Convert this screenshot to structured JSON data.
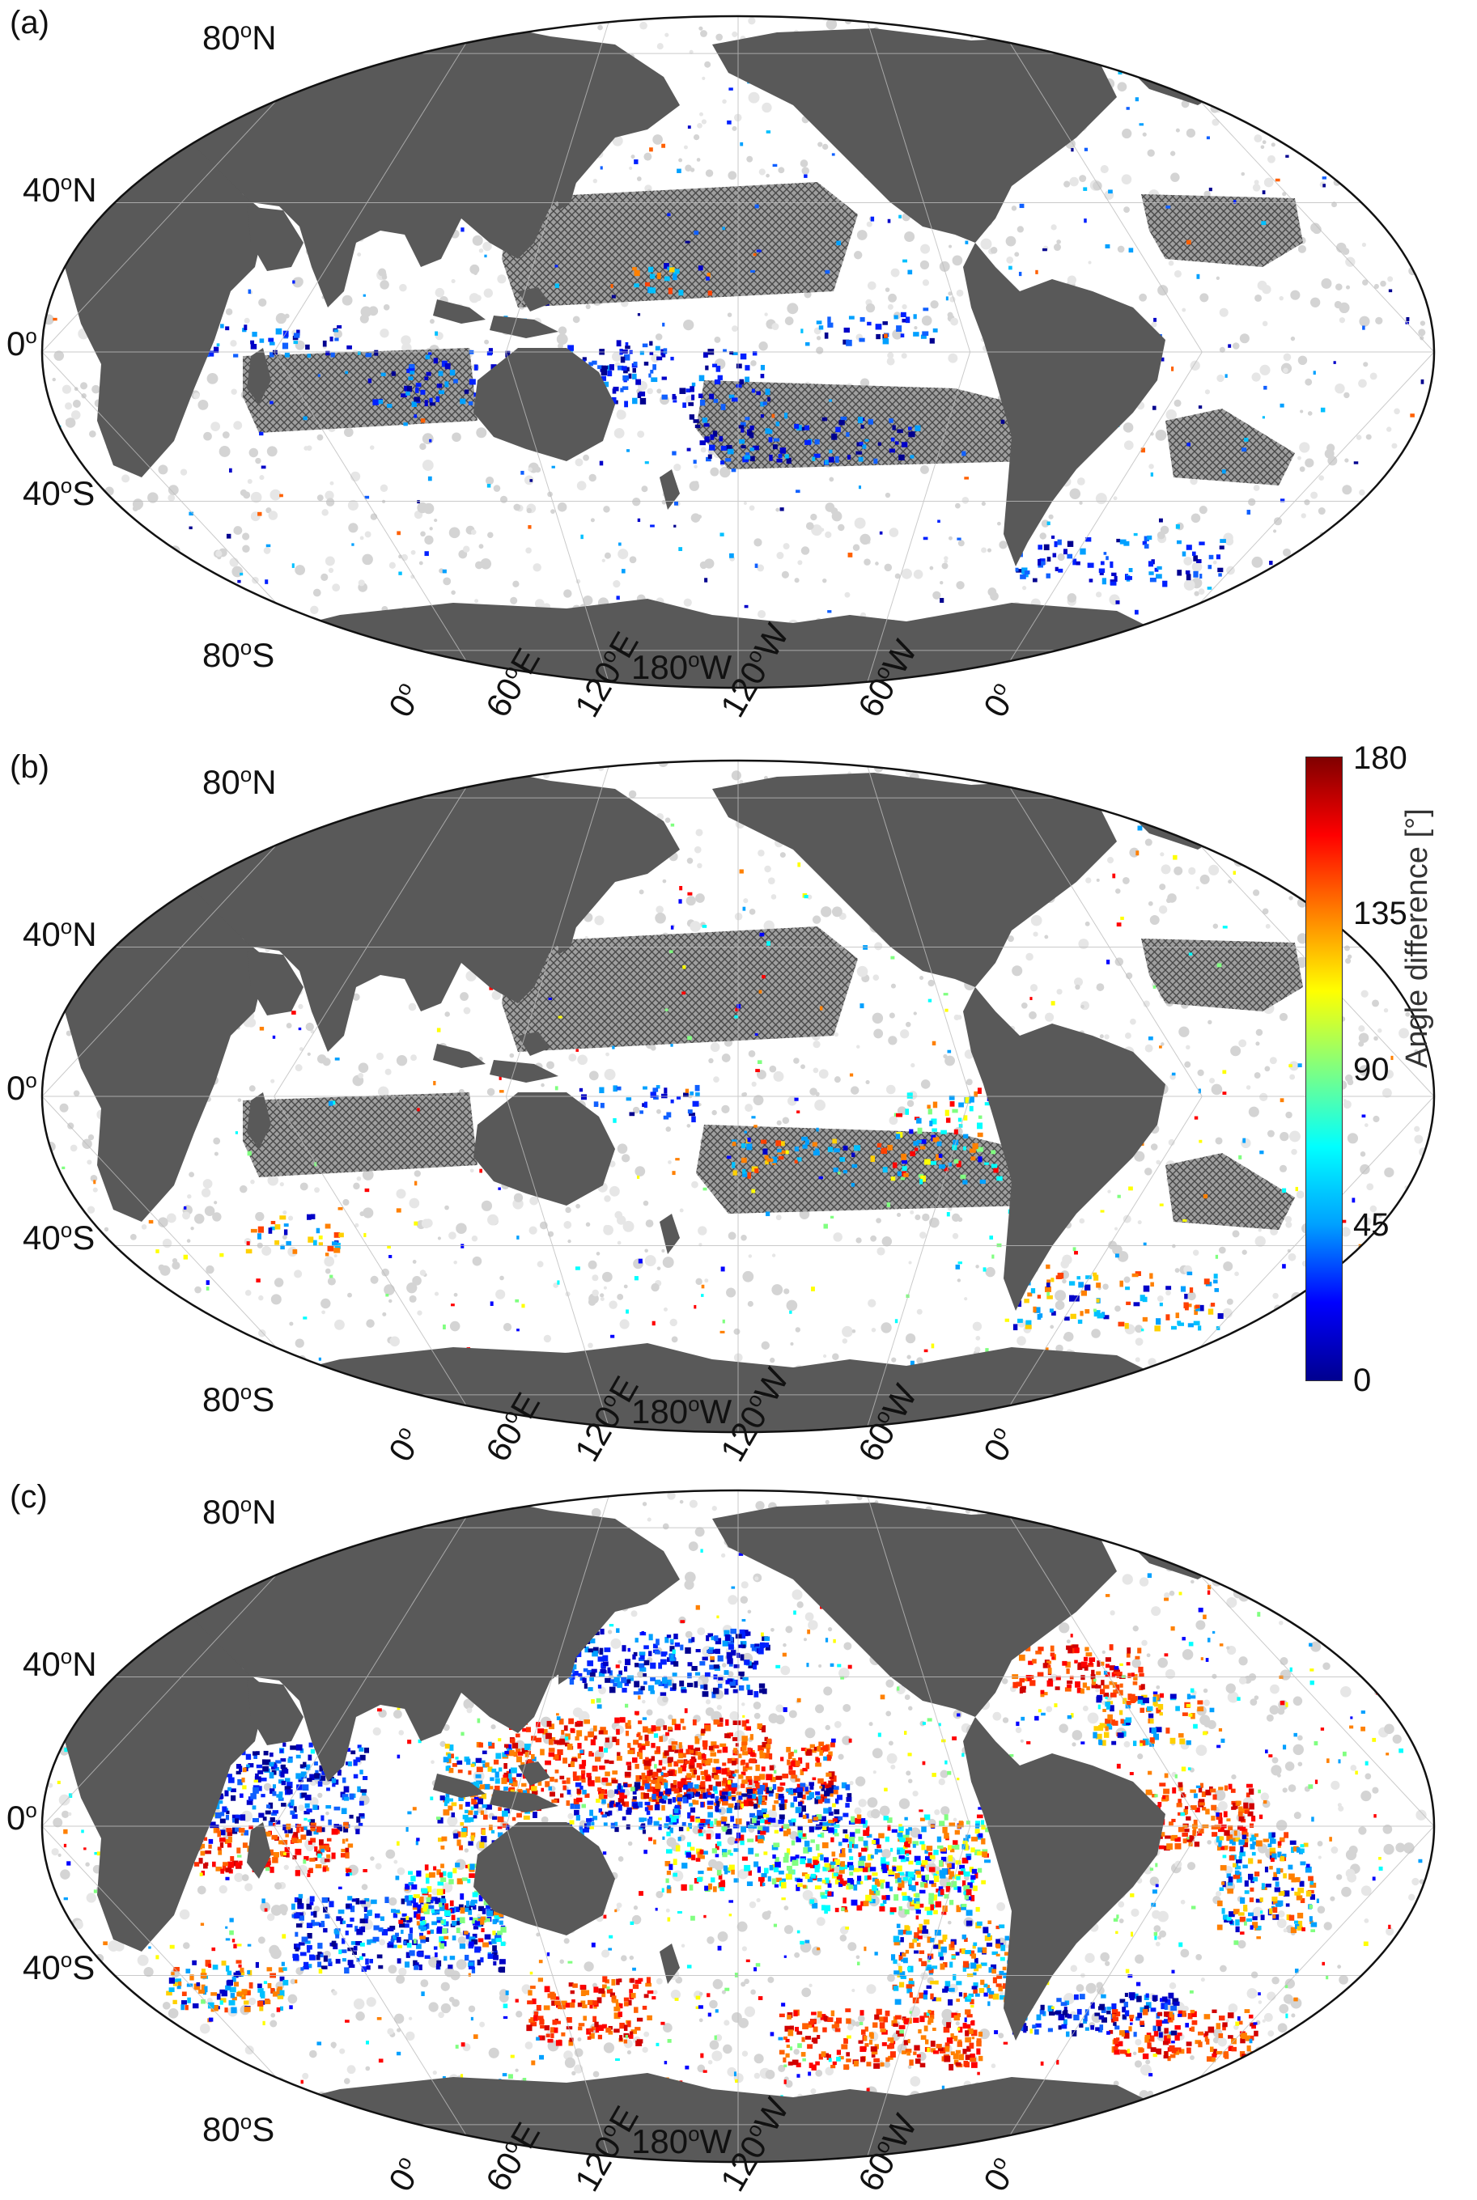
{
  "panels": [
    {
      "label": "(a)",
      "style": "a"
    },
    {
      "label": "(b)",
      "style": "b"
    },
    {
      "label": "(c)",
      "style": "c"
    }
  ],
  "lat_labels": {
    "n80": "80",
    "n40": "40",
    "eq": "0",
    "s40": "40",
    "s80": "80",
    "suffix_n": "N",
    "suffix_s": "S",
    "degree": "o"
  },
  "lon_labels": [
    "0",
    "60",
    "120",
    "180",
    "120",
    "60",
    "0"
  ],
  "lon_suffixes": [
    "",
    "E",
    "E",
    "W",
    "W",
    "W",
    ""
  ],
  "colorbar": {
    "title": "Angle difference [°]",
    "ticks": [
      "180",
      "135",
      "90",
      "45",
      "0"
    ],
    "range": [
      0,
      180
    ],
    "colors": [
      "#00008f",
      "#0000ff",
      "#00a0ff",
      "#00ffff",
      "#80ff80",
      "#ffff00",
      "#ff8000",
      "#ff0000",
      "#800000"
    ]
  },
  "map_colors": {
    "land": "#595959",
    "ocean": "#ffffff",
    "speckle_gray": "#cfcfcf",
    "hatch": "#7a7a7a"
  }
}
